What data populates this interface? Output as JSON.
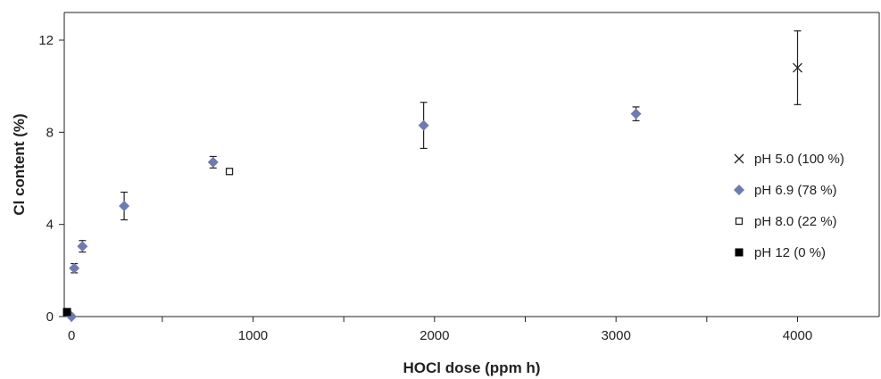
{
  "chart_data": {
    "type": "scatter",
    "title": "",
    "xlabel": "HOCl dose (ppm h)",
    "ylabel": "Cl content (%)",
    "xlim": [
      -40,
      4450
    ],
    "ylim": [
      0,
      13.2
    ],
    "xticks": [
      0,
      1000,
      2000,
      3000,
      4000
    ],
    "xtick_labels": [
      "0",
      "1000",
      "2000",
      "3000",
      "4000"
    ],
    "x_minor_ticks": [
      500,
      1500,
      2500,
      3500
    ],
    "yticks": [
      0,
      4,
      8,
      12
    ],
    "ytick_labels": [
      "0",
      "4",
      "8",
      "12"
    ],
    "grid": false,
    "legend_position": "right",
    "series": [
      {
        "name": "pH 5.0 (100 %)",
        "marker": "x",
        "color": "#222222",
        "points": [
          {
            "x": 4000,
            "y": 10.8,
            "err": 1.6
          }
        ]
      },
      {
        "name": "pH 6.9 (78 %)",
        "marker": "diamond",
        "color": "#6f7bb0",
        "points": [
          {
            "x": 0,
            "y": 0,
            "err": 0
          },
          {
            "x": 15,
            "y": 2.1,
            "err": 0.2
          },
          {
            "x": 60,
            "y": 3.05,
            "err": 0.25
          },
          {
            "x": 290,
            "y": 4.8,
            "err": 0.6
          },
          {
            "x": 780,
            "y": 6.7,
            "err": 0.25
          },
          {
            "x": 1940,
            "y": 8.3,
            "err": 1.0
          },
          {
            "x": 3110,
            "y": 8.8,
            "err": 0.3
          }
        ]
      },
      {
        "name": "pH 8.0 (22 %)",
        "marker": "open-square",
        "color": "#222222",
        "points": [
          {
            "x": 870,
            "y": 6.3,
            "err": 0
          }
        ]
      },
      {
        "name": "pH 12  (0 %)",
        "marker": "filled-square",
        "color": "#000000",
        "points": [
          {
            "x": -25,
            "y": 0.2,
            "err": 0
          }
        ]
      }
    ]
  }
}
